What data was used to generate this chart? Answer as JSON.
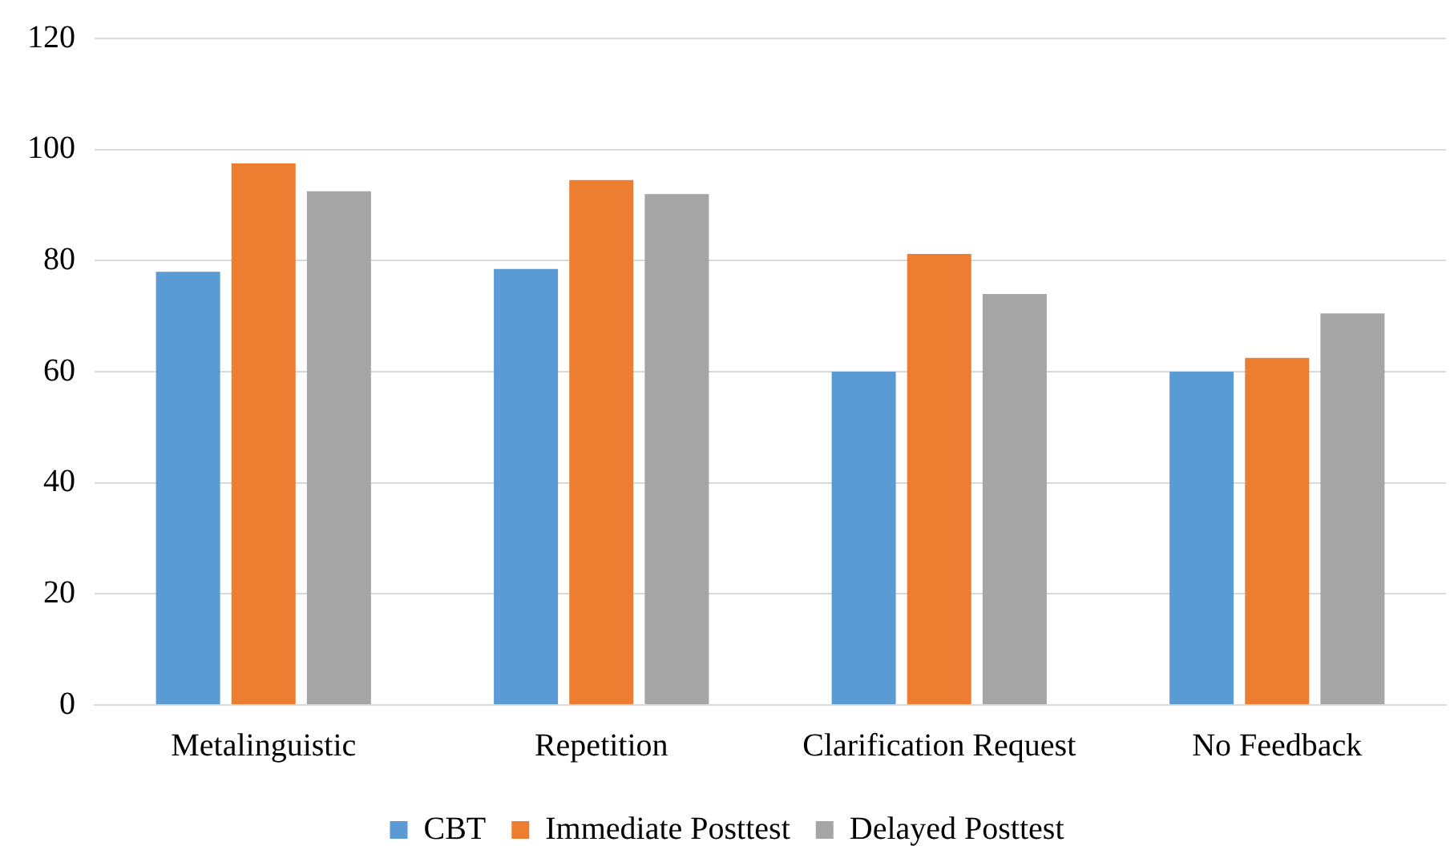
{
  "chart_data": {
    "type": "bar",
    "categories": [
      "Metalinguistic",
      "Repetition",
      "Clarification Request",
      "No Feedback"
    ],
    "series": [
      {
        "name": "CBT",
        "color": "#5b9bd5",
        "values": [
          78,
          78.5,
          60,
          60
        ]
      },
      {
        "name": "Immediate Posttest",
        "color": "#ed7d31",
        "values": [
          97.5,
          94.5,
          81.2,
          62.5
        ]
      },
      {
        "name": "Delayed Posttest",
        "color": "#a5a5a5",
        "values": [
          92.5,
          92,
          74,
          70.5
        ]
      }
    ],
    "ylim": [
      0,
      120
    ],
    "yticks": [
      0,
      20,
      40,
      60,
      80,
      100,
      120
    ],
    "grid": "y",
    "legend": "bottom"
  }
}
